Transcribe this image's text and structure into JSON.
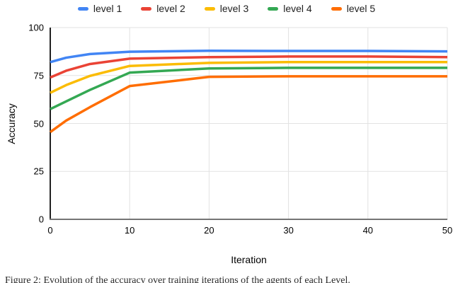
{
  "chart_data": {
    "type": "line",
    "title": "",
    "xlabel": "Iteration",
    "ylabel": "Accuracy",
    "xlim": [
      0,
      50
    ],
    "ylim": [
      0,
      100
    ],
    "x_ticks": [
      0,
      10,
      20,
      30,
      40,
      50
    ],
    "y_ticks": [
      0,
      25,
      50,
      75,
      100
    ],
    "grid": true,
    "legend_position": "top",
    "x": [
      0,
      2,
      5,
      10,
      20,
      30,
      40,
      50
    ],
    "series": [
      {
        "name": "level 1",
        "color": "#4285F4",
        "values": [
          82.0,
          84.3,
          86.2,
          87.4,
          87.9,
          87.8,
          87.8,
          87.6
        ]
      },
      {
        "name": "level 2",
        "color": "#EA4335",
        "values": [
          74.0,
          77.5,
          81.0,
          83.8,
          84.6,
          84.9,
          84.9,
          84.6
        ]
      },
      {
        "name": "level 3",
        "color": "#FBBC04",
        "values": [
          66.0,
          70.0,
          74.8,
          80.0,
          81.6,
          82.0,
          82.0,
          82.0
        ]
      },
      {
        "name": "level 4",
        "color": "#34A853",
        "values": [
          57.5,
          61.5,
          67.5,
          76.5,
          78.7,
          79.0,
          79.0,
          79.0
        ]
      },
      {
        "name": "level 5",
        "color": "#FF6D01",
        "values": [
          45.5,
          51.5,
          58.5,
          69.5,
          74.3,
          74.6,
          74.6,
          74.6
        ]
      }
    ]
  },
  "colors": {
    "grid": "#e2e2e2",
    "x_axis_line": "#757575",
    "y_axis_line": "#212121",
    "tick_text": "#000000",
    "legend_text": "#1f1f1f"
  },
  "caption": {
    "text": "Figure 2: Evolution of the accuracy over training iterations of the agents of each Level."
  }
}
